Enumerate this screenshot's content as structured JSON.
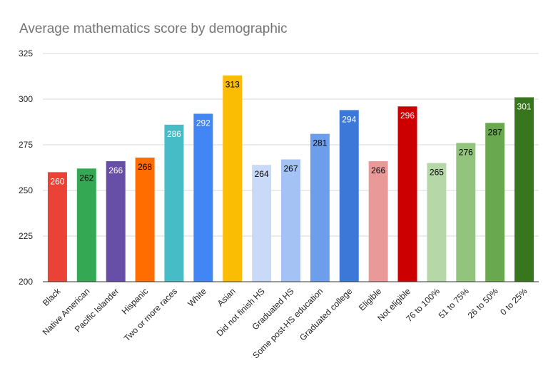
{
  "chart_data": {
    "type": "bar",
    "title": "Average mathematics score by demographic",
    "xlabel": "",
    "ylabel": "",
    "ylim": [
      200,
      325
    ],
    "yticks": [
      200,
      225,
      250,
      275,
      300,
      325
    ],
    "grid": true,
    "legend": "none",
    "categories": [
      "Black",
      "Native American",
      "Pacific Islander",
      "Hispanic",
      "Two or more races",
      "White",
      "Asian",
      "Did not finish HS",
      "Graduated HS",
      "Some post-HS education",
      "Graduated college",
      "Eligible",
      "Not eligible",
      "76 to 100%",
      "51 to 75%",
      "26 to 50%",
      "0 to 25%"
    ],
    "values": [
      260,
      262,
      266,
      268,
      286,
      292,
      313,
      264,
      267,
      281,
      294,
      266,
      296,
      265,
      276,
      287,
      301
    ],
    "colors": [
      "#ea4335",
      "#34a853",
      "#674ea7",
      "#ff6d01",
      "#46bdc6",
      "#4285f4",
      "#fbbc04",
      "#c9daf8",
      "#a4c2f4",
      "#6d9eeb",
      "#3c78d8",
      "#ea9999",
      "#cc0000",
      "#b6d7a8",
      "#93c47d",
      "#6aa84f",
      "#38761d"
    ],
    "label_colors": [
      "#ffffff",
      "#000000",
      "#ffffff",
      "#000000",
      "#ffffff",
      "#ffffff",
      "#000000",
      "#000000",
      "#000000",
      "#000000",
      "#ffffff",
      "#000000",
      "#ffffff",
      "#000000",
      "#000000",
      "#000000",
      "#ffffff"
    ]
  }
}
